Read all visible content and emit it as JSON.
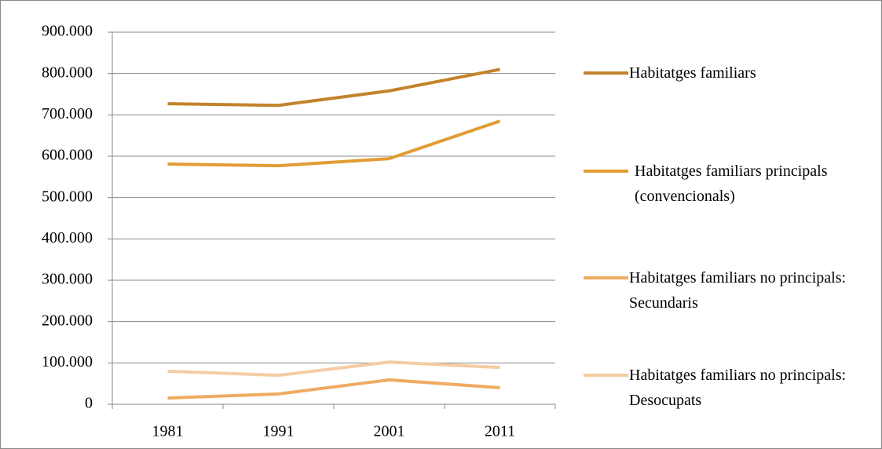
{
  "chart_data": {
    "type": "line",
    "categories": [
      "1981",
      "1991",
      "2001",
      "2011"
    ],
    "series": [
      {
        "name": "Habitatges familiars",
        "color": "#c3822b",
        "values": [
          727000,
          723000,
          758000,
          810000
        ]
      },
      {
        "name": "Habitatges familiars principals (convencionals)",
        "color": "#e29c33",
        "values": [
          581000,
          577000,
          594000,
          685000
        ]
      },
      {
        "name": "Habitatges familiars no principals: Secundaris",
        "color": "#efab62",
        "values": [
          15000,
          25000,
          59000,
          40000
        ]
      },
      {
        "name": "Habitatges familiars no principals: Desocupats",
        "color": "#f4cca3",
        "values": [
          80000,
          70000,
          102000,
          89000
        ]
      }
    ],
    "ylim": [
      0,
      900000
    ],
    "yticks": [
      0,
      {
        "value": 100000,
        "label": "100.000"
      },
      {
        "value": 200000,
        "label": "200.000"
      },
      {
        "value": 300000,
        "label": "300.000"
      },
      {
        "value": 400000,
        "label": "400.000"
      },
      {
        "value": 500000,
        "label": "500.000"
      },
      {
        "value": 600000,
        "label": "600.000"
      },
      {
        "value": 700000,
        "label": "700.000"
      },
      {
        "value": 800000,
        "label": "800.000"
      },
      {
        "value": 900000,
        "label": "900.000"
      }
    ],
    "grid": true,
    "legend": "right"
  }
}
